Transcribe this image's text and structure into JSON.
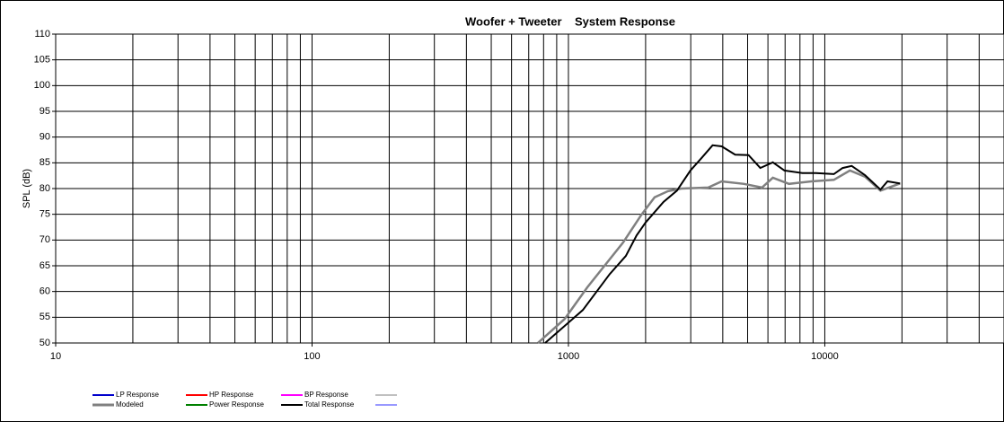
{
  "chart_data": {
    "type": "line",
    "title": "Woofer + Tweeter    System Response",
    "y_label": "SPL (dB)",
    "log_x": true,
    "xlim": [
      10,
      50000
    ],
    "xticks": [
      10,
      100,
      1000,
      10000
    ],
    "x_minor_grid": [
      20,
      30,
      40,
      50,
      60,
      70,
      80,
      90,
      200,
      300,
      400,
      500,
      600,
      700,
      800,
      900,
      2000,
      3000,
      4000,
      5000,
      6000,
      7000,
      8000,
      9000,
      20000,
      30000,
      40000
    ],
    "ylim": [
      50,
      110
    ],
    "yticks": [
      50,
      55,
      60,
      65,
      70,
      75,
      80,
      85,
      90,
      95,
      100,
      105,
      110
    ],
    "grid": true,
    "legend": "bottom",
    "series": [
      {
        "name": "LP Response",
        "color": "#0000cc",
        "x": [],
        "values": []
      },
      {
        "name": "HP Response",
        "color": "#ff0000",
        "x": [],
        "values": []
      },
      {
        "name": "BP Response",
        "color": "#ff00ff",
        "x": [],
        "values": []
      },
      {
        "color": "#808080",
        "x": [],
        "values": []
      },
      {
        "name": "Modeled",
        "color": "#808080",
        "x": [
          760,
          968,
          1184,
          1633,
          1919,
          2167,
          2445,
          2760,
          3510,
          3960,
          4840,
          5690,
          6270,
          7250,
          8870,
          10840,
          12530,
          14360,
          16480,
          19670
        ],
        "values": [
          50,
          54.7,
          60.8,
          69.5,
          74.8,
          78.3,
          79.5,
          80,
          80.2,
          81.4,
          80.9,
          80.2,
          82.1,
          80.9,
          81.4,
          81.7,
          83.5,
          82.3,
          79.6,
          81
        ]
      },
      {
        "name": "Power Response",
        "color": "#008000",
        "x": [],
        "values": []
      },
      {
        "name": "Total Response",
        "color": "#000000",
        "x": [
          811,
          1138,
          1449,
          1675,
          1845,
          2000,
          2350,
          2650,
          2990,
          3290,
          3650,
          3960,
          4470,
          5040,
          5600,
          6270,
          6960,
          8180,
          9230,
          10840,
          11740,
          12730,
          14360,
          16480,
          17570,
          19670
        ],
        "values": [
          50,
          56.4,
          63.4,
          66.9,
          70.9,
          73.4,
          77.4,
          79.6,
          83.5,
          85.8,
          88.4,
          88.2,
          86.6,
          86.5,
          84,
          85.1,
          83.5,
          83,
          83,
          82.8,
          84,
          84.4,
          82.6,
          79.8,
          81.4,
          81
        ]
      },
      {
        "color": "#3333ff",
        "x": [],
        "values": []
      }
    ]
  }
}
